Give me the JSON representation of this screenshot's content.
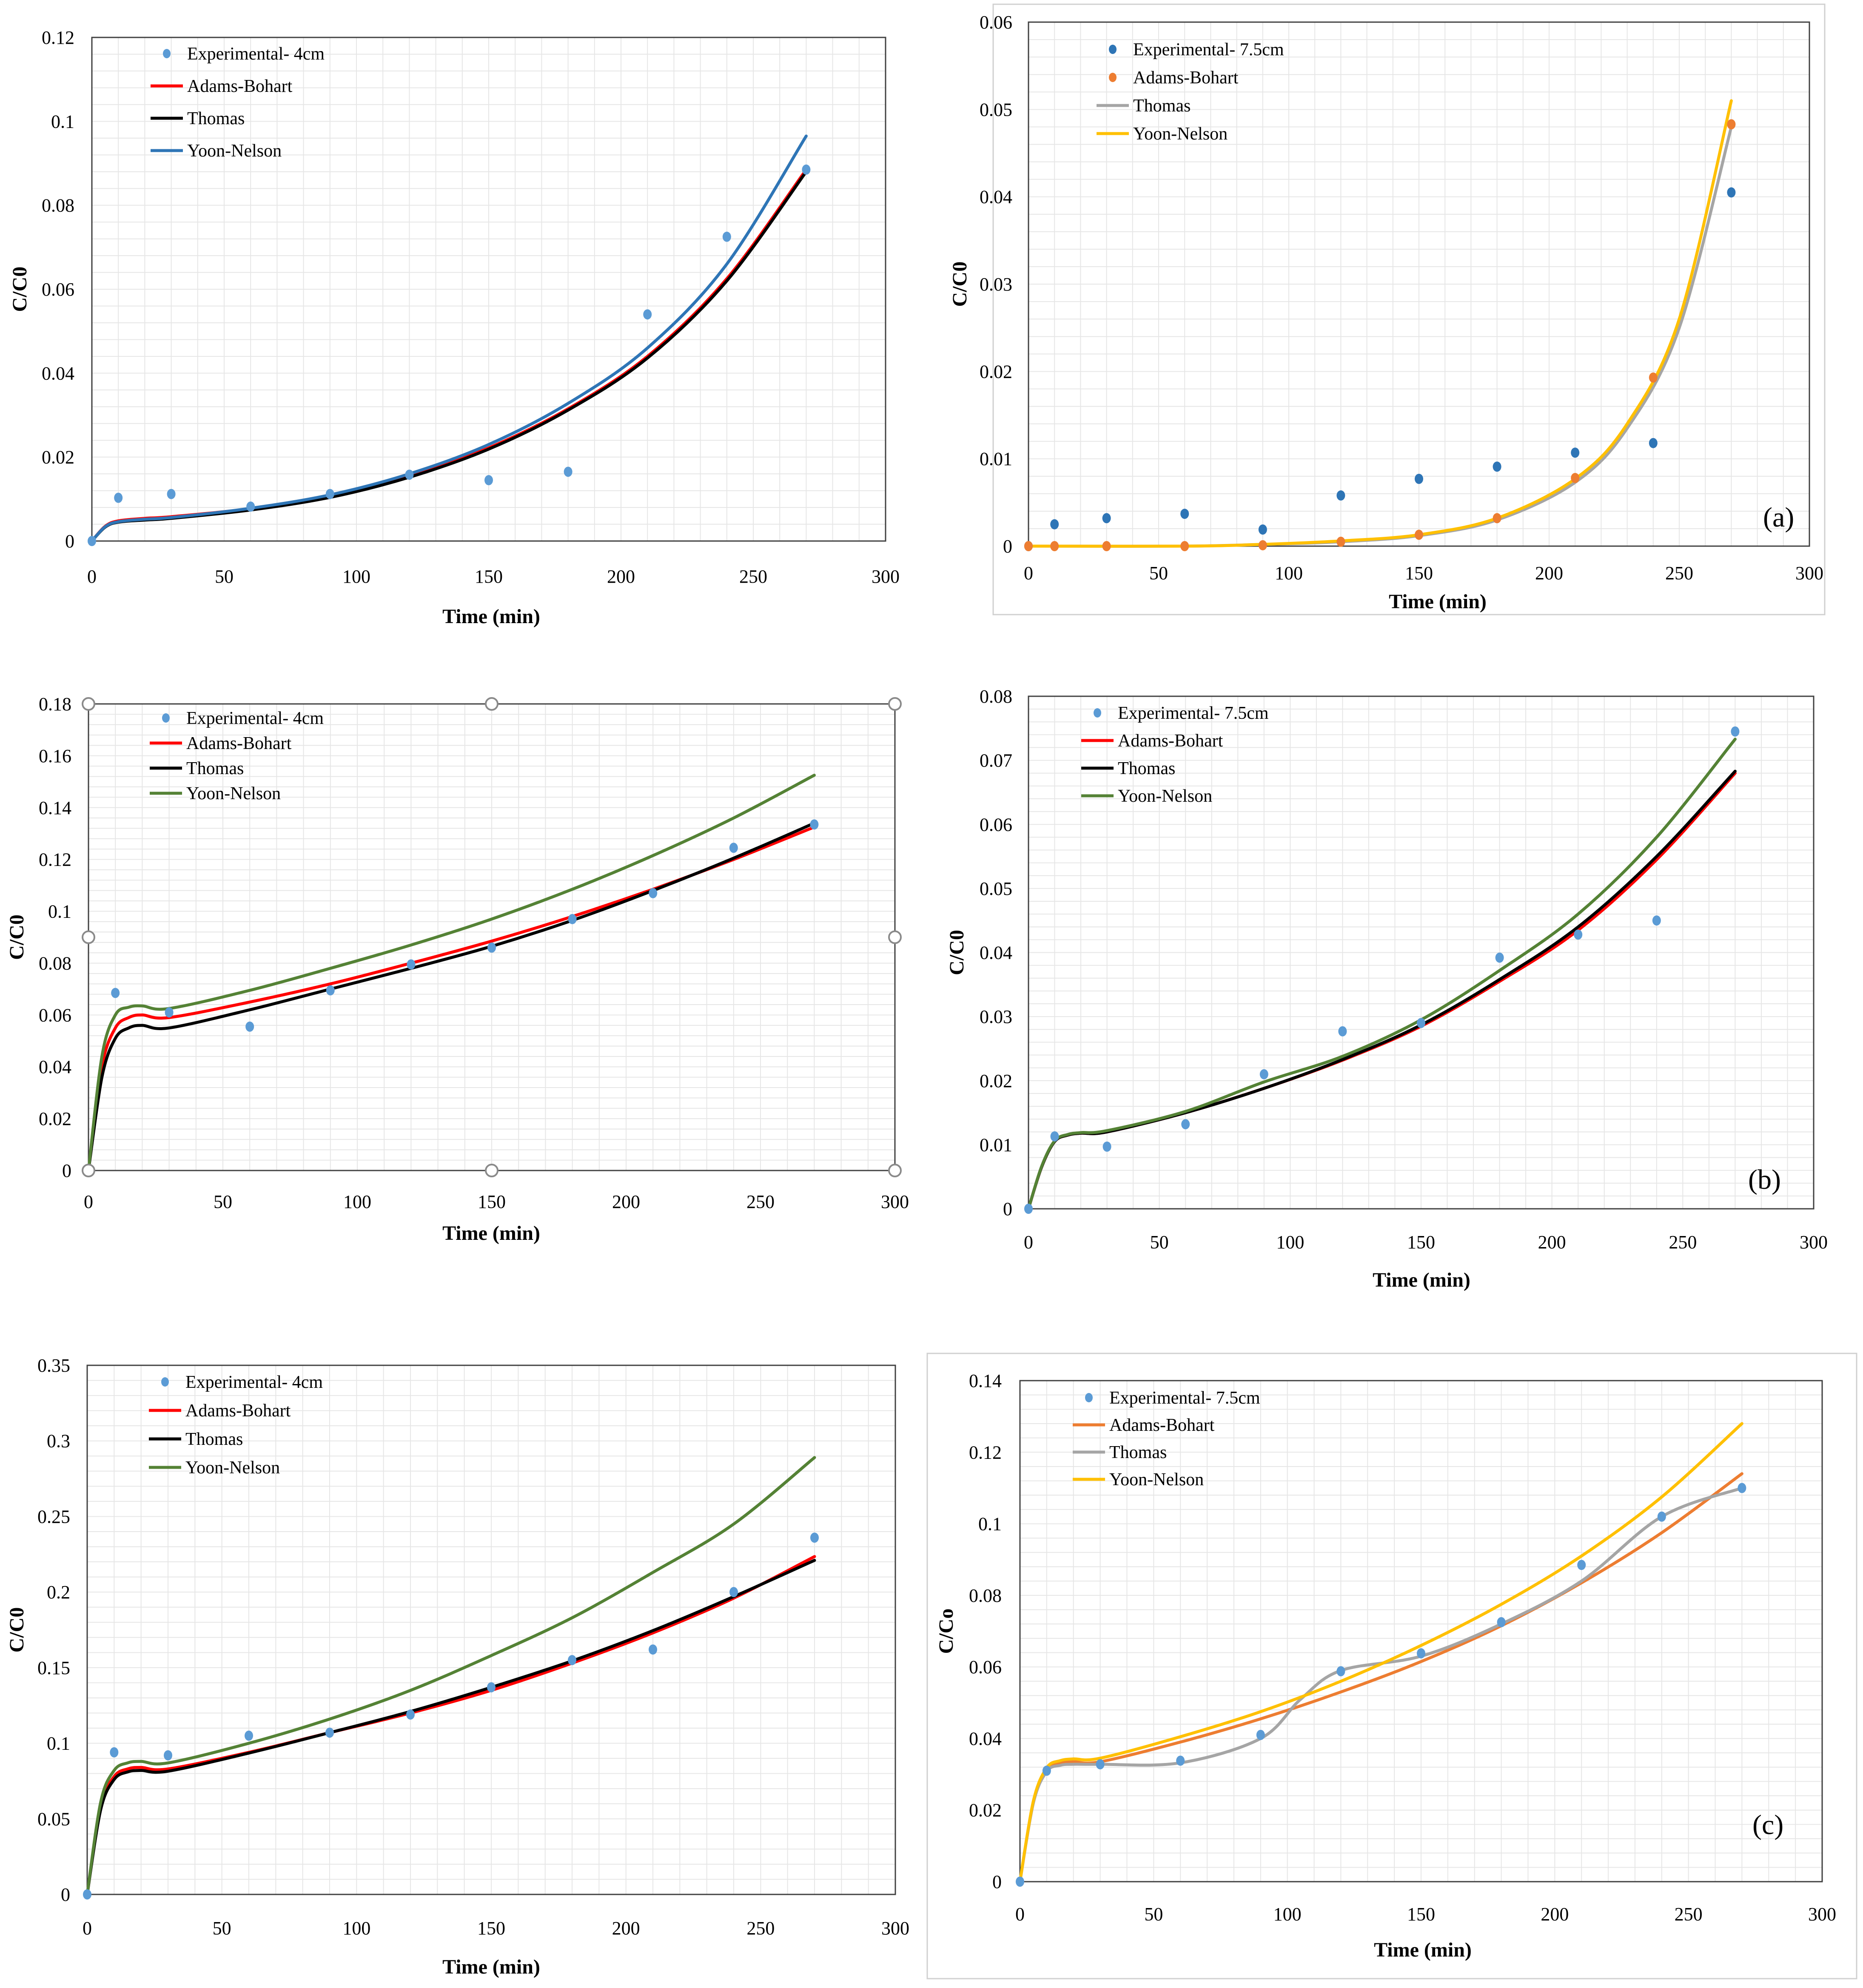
{
  "figure_labels": {
    "a": "(a)",
    "b": "(b)",
    "c": "(c)"
  },
  "chart_data": [
    {
      "id": "a-left",
      "type": "line",
      "xlabel": "Time (min)",
      "ylabel": "C/C0",
      "xlim": [
        0,
        300
      ],
      "ylim": [
        0,
        0.12
      ],
      "xticks": [
        0,
        50,
        100,
        150,
        200,
        250,
        300
      ],
      "xtick_labels": [
        "0",
        "50",
        "100",
        "150",
        "200",
        "250",
        "300"
      ],
      "yticks": [
        0,
        0.02,
        0.04,
        0.06,
        0.08,
        0.1,
        0.12
      ],
      "ytick_labels": [
        "0",
        "0.02",
        "0.04",
        "0.06",
        "0.08",
        "0.1",
        "0.12"
      ],
      "legend": "top-left",
      "series": [
        {
          "name": "Experimental- 4cm",
          "kind": "scatter",
          "color": "#5B9BD5",
          "x": [
            0,
            10,
            30,
            60,
            90,
            120,
            150,
            180,
            210,
            240,
            270
          ],
          "y": [
            0,
            0.0103,
            0.0112,
            0.0082,
            0.0112,
            0.0158,
            0.0145,
            0.0165,
            0.054,
            0.0725,
            0.0885
          ]
        },
        {
          "name": "Adams-Bohart",
          "kind": "line",
          "color": "#FF0000",
          "x": [
            0,
            5,
            10,
            20,
            30,
            60,
            90,
            120,
            150,
            180,
            210,
            240,
            270
          ],
          "y": [
            0,
            0.0035,
            0.0048,
            0.0054,
            0.0058,
            0.0077,
            0.0106,
            0.0155,
            0.0222,
            0.0315,
            0.044,
            0.0625,
            0.0885
          ]
        },
        {
          "name": "Thomas",
          "kind": "line",
          "color": "#000000",
          "x": [
            0,
            5,
            10,
            20,
            30,
            60,
            90,
            120,
            150,
            180,
            210,
            240,
            270
          ],
          "y": [
            0,
            0.0033,
            0.0045,
            0.005,
            0.0054,
            0.0074,
            0.0104,
            0.0152,
            0.0219,
            0.0312,
            0.0436,
            0.062,
            0.088
          ]
        },
        {
          "name": "Yoon-Nelson",
          "kind": "line",
          "color": "#2E75B6",
          "x": [
            0,
            5,
            10,
            20,
            30,
            60,
            90,
            120,
            150,
            180,
            210,
            240,
            270
          ],
          "y": [
            0,
            0.0034,
            0.0046,
            0.0052,
            0.0056,
            0.0078,
            0.011,
            0.016,
            0.023,
            0.0328,
            0.046,
            0.066,
            0.0965
          ]
        }
      ]
    },
    {
      "id": "a-right",
      "type": "line",
      "xlabel": "Time (min)",
      "ylabel": "C/C0",
      "xlim": [
        0,
        300
      ],
      "ylim": [
        0,
        0.06
      ],
      "xticks": [
        0,
        50,
        100,
        150,
        200,
        250,
        300
      ],
      "xtick_labels": [
        "0",
        "50",
        "100",
        "150",
        "200",
        "250",
        "300"
      ],
      "yticks": [
        0,
        0.01,
        0.02,
        0.03,
        0.04,
        0.05,
        0.06
      ],
      "ytick_labels": [
        "0",
        "0.01",
        "0.02",
        "0.03",
        "0.04",
        "0.05",
        "0.06"
      ],
      "legend": "top-left",
      "panel_label": "(a)",
      "series": [
        {
          "name": "Experimental- 7.5cm",
          "kind": "scatter",
          "color": "#2E75B6",
          "x": [
            0,
            10,
            30,
            60,
            90,
            120,
            150,
            180,
            210,
            240,
            270
          ],
          "y": [
            0,
            0.0025,
            0.0032,
            0.0037,
            0.0019,
            0.0058,
            0.0077,
            0.0091,
            0.0107,
            0.0118,
            0.0405
          ]
        },
        {
          "name": "Adams-Bohart",
          "kind": "scatter",
          "color": "#ED7D31",
          "x": [
            0,
            10,
            30,
            60,
            90,
            120,
            150,
            180,
            210,
            240,
            270
          ],
          "y": [
            0,
            0,
            0,
            0,
            0.0001,
            0.0005,
            0.0013,
            0.0032,
            0.0078,
            0.0193,
            0.0483
          ]
        },
        {
          "name": "Thomas",
          "kind": "line",
          "color": "#A5A5A5",
          "x": [
            0,
            60,
            90,
            120,
            150,
            180,
            210,
            230,
            250,
            270
          ],
          "y": [
            0,
            0,
            0.0002,
            0.0005,
            0.0012,
            0.003,
            0.0073,
            0.0135,
            0.025,
            0.048
          ]
        },
        {
          "name": "Yoon-Nelson",
          "kind": "line",
          "color": "#FFC000",
          "x": [
            0,
            60,
            90,
            120,
            150,
            180,
            210,
            230,
            250,
            270
          ],
          "y": [
            0,
            0,
            0.0002,
            0.0006,
            0.0013,
            0.0032,
            0.0077,
            0.014,
            0.026,
            0.051
          ]
        }
      ]
    },
    {
      "id": "b-left",
      "type": "line",
      "xlabel": "Time (min)",
      "ylabel": "C/C0",
      "xlim": [
        0,
        300
      ],
      "ylim": [
        0,
        0.18
      ],
      "xticks": [
        0,
        50,
        100,
        150,
        200,
        250,
        300
      ],
      "xtick_labels": [
        "0",
        "50",
        "100",
        "150",
        "200",
        "250",
        "300"
      ],
      "yticks": [
        0,
        0.02,
        0.04,
        0.06,
        0.08,
        0.1,
        0.12,
        0.14,
        0.16,
        0.18
      ],
      "ytick_labels": [
        "0",
        "0.02",
        "0.04",
        "0.06",
        "0.08",
        "0.1",
        "0.12",
        "0.14",
        "0.16",
        "0.18"
      ],
      "legend": "top-left",
      "series": [
        {
          "name": "Experimental- 4cm",
          "kind": "scatter",
          "color": "#5B9BD5",
          "x": [
            0,
            10,
            30,
            60,
            90,
            120,
            150,
            180,
            210,
            240,
            270
          ],
          "y": [
            0,
            0.0685,
            0.061,
            0.0555,
            0.0695,
            0.0795,
            0.086,
            0.097,
            0.107,
            0.1245,
            0.1335
          ]
        },
        {
          "name": "Adams-Bohart",
          "kind": "line",
          "color": "#FF0000",
          "x": [
            0,
            5,
            10,
            15,
            20,
            30,
            60,
            90,
            120,
            150,
            180,
            210,
            240,
            270
          ],
          "y": [
            0,
            0.04,
            0.055,
            0.059,
            0.06,
            0.059,
            0.065,
            0.072,
            0.08,
            0.0885,
            0.098,
            0.1085,
            0.12,
            0.1325
          ]
        },
        {
          "name": "Thomas",
          "kind": "line",
          "color": "#000000",
          "x": [
            0,
            5,
            10,
            15,
            20,
            30,
            60,
            90,
            120,
            150,
            180,
            210,
            240,
            270
          ],
          "y": [
            0,
            0.036,
            0.051,
            0.055,
            0.056,
            0.055,
            0.062,
            0.07,
            0.078,
            0.0865,
            0.0965,
            0.108,
            0.1205,
            0.134
          ]
        },
        {
          "name": "Yoon-Nelson",
          "kind": "line",
          "color": "#548235",
          "x": [
            0,
            5,
            10,
            15,
            20,
            30,
            60,
            90,
            120,
            150,
            180,
            210,
            240,
            270
          ],
          "y": [
            0,
            0.044,
            0.06,
            0.063,
            0.0635,
            0.0625,
            0.0695,
            0.078,
            0.087,
            0.097,
            0.1085,
            0.1215,
            0.136,
            0.1525
          ]
        }
      ]
    },
    {
      "id": "b-right",
      "type": "line",
      "xlabel": "Time (min)",
      "ylabel": "C/C0",
      "xlim": [
        0,
        300
      ],
      "ylim": [
        0,
        0.08
      ],
      "xticks": [
        0,
        50,
        100,
        150,
        200,
        250,
        300
      ],
      "xtick_labels": [
        "0",
        "50",
        "100",
        "150",
        "200",
        "250",
        "300"
      ],
      "yticks": [
        0,
        0.01,
        0.02,
        0.03,
        0.04,
        0.05,
        0.06,
        0.07,
        0.08
      ],
      "ytick_labels": [
        "0",
        "0.01",
        "0.02",
        "0.03",
        "0.04",
        "0.05",
        "0.06",
        "0.07",
        "0.08"
      ],
      "legend": "top-left",
      "panel_label": "(b)",
      "series": [
        {
          "name": "Experimental- 7.5cm",
          "kind": "scatter",
          "color": "#5B9BD5",
          "x": [
            0,
            10,
            30,
            60,
            90,
            120,
            150,
            180,
            210,
            240,
            270
          ],
          "y": [
            0,
            0.0113,
            0.0097,
            0.0132,
            0.021,
            0.0277,
            0.029,
            0.0392,
            0.0428,
            0.045,
            0.0745
          ]
        },
        {
          "name": "Adams-Bohart",
          "kind": "line",
          "color": "#FF0000",
          "x": [
            0,
            5,
            10,
            15,
            20,
            30,
            60,
            90,
            120,
            150,
            180,
            210,
            240,
            270
          ],
          "y": [
            0,
            0.0065,
            0.0105,
            0.0115,
            0.0118,
            0.012,
            0.015,
            0.0188,
            0.0232,
            0.0285,
            0.0355,
            0.0435,
            0.0545,
            0.068
          ]
        },
        {
          "name": "Thomas",
          "kind": "line",
          "color": "#000000",
          "x": [
            0,
            5,
            10,
            15,
            20,
            30,
            60,
            90,
            120,
            150,
            180,
            210,
            240,
            270
          ],
          "y": [
            0,
            0.0065,
            0.0105,
            0.0115,
            0.0118,
            0.012,
            0.015,
            0.0188,
            0.0233,
            0.0287,
            0.0358,
            0.044,
            0.055,
            0.0683
          ]
        },
        {
          "name": "Yoon-Nelson",
          "kind": "line",
          "color": "#548235",
          "x": [
            0,
            5,
            10,
            15,
            20,
            30,
            60,
            90,
            120,
            150,
            180,
            210,
            240,
            270
          ],
          "y": [
            0,
            0.0066,
            0.0106,
            0.0116,
            0.0119,
            0.0122,
            0.0152,
            0.0198,
            0.0238,
            0.0295,
            0.0372,
            0.046,
            0.058,
            0.0733
          ]
        }
      ]
    },
    {
      "id": "c-left",
      "type": "line",
      "xlabel": "Time (min)",
      "ylabel": "C/C0",
      "xlim": [
        0,
        300
      ],
      "ylim": [
        0,
        0.35
      ],
      "xticks": [
        0,
        50,
        100,
        150,
        200,
        250,
        300
      ],
      "xtick_labels": [
        "0",
        "50",
        "100",
        "150",
        "200",
        "250",
        "300"
      ],
      "yticks": [
        0,
        0.05,
        0.1,
        0.15,
        0.2,
        0.25,
        0.3,
        0.35
      ],
      "ytick_labels": [
        "0",
        "0.05",
        "0.1",
        "0.15",
        "0.2",
        "0.25",
        "0.3",
        "0.35"
      ],
      "legend": "top-left",
      "series": [
        {
          "name": "Experimental- 4cm",
          "kind": "scatter",
          "color": "#5B9BD5",
          "x": [
            0,
            10,
            30,
            60,
            90,
            120,
            150,
            180,
            210,
            240,
            270
          ],
          "y": [
            0,
            0.094,
            0.092,
            0.105,
            0.107,
            0.119,
            0.137,
            0.155,
            0.162,
            0.2,
            0.236
          ]
        },
        {
          "name": "Adams-Bohart",
          "kind": "line",
          "color": "#FF0000",
          "x": [
            0,
            5,
            10,
            15,
            20,
            30,
            60,
            90,
            120,
            150,
            180,
            210,
            240,
            270
          ],
          "y": [
            0,
            0.058,
            0.078,
            0.083,
            0.084,
            0.083,
            0.094,
            0.107,
            0.12,
            0.135,
            0.153,
            0.173,
            0.196,
            0.2235
          ]
        },
        {
          "name": "Thomas",
          "kind": "line",
          "color": "#000000",
          "x": [
            0,
            5,
            10,
            15,
            20,
            30,
            60,
            90,
            120,
            150,
            180,
            210,
            240,
            270
          ],
          "y": [
            0,
            0.056,
            0.076,
            0.081,
            0.082,
            0.0815,
            0.0935,
            0.107,
            0.121,
            0.137,
            0.1545,
            0.1745,
            0.197,
            0.221
          ]
        },
        {
          "name": "Yoon-Nelson",
          "kind": "line",
          "color": "#548235",
          "x": [
            0,
            5,
            10,
            15,
            20,
            30,
            60,
            90,
            120,
            150,
            180,
            210,
            240,
            270
          ],
          "y": [
            0,
            0.061,
            0.082,
            0.087,
            0.088,
            0.087,
            0.1,
            0.116,
            0.135,
            0.158,
            0.183,
            0.213,
            0.245,
            0.289
          ]
        }
      ]
    },
    {
      "id": "c-right",
      "type": "line",
      "xlabel": "Time (min)",
      "ylabel": "C/Co",
      "xlim": [
        0,
        300
      ],
      "ylim": [
        0,
        0.14
      ],
      "xticks": [
        0,
        50,
        100,
        150,
        200,
        250,
        300
      ],
      "xtick_labels": [
        "0",
        "50",
        "100",
        "150",
        "200",
        "250",
        "300"
      ],
      "yticks": [
        0,
        0.02,
        0.04,
        0.06,
        0.08,
        0.1,
        0.12,
        0.14
      ],
      "ytick_labels": [
        "0",
        "0.02",
        "0.04",
        "0.06",
        "0.08",
        "0.1",
        "0.12",
        "0.14"
      ],
      "legend": "top-left",
      "panel_label": "(c)",
      "series": [
        {
          "name": "Experimental- 7.5cm",
          "kind": "scatter",
          "color": "#5B9BD5",
          "x": [
            0,
            10,
            30,
            60,
            90,
            120,
            150,
            180,
            210,
            240,
            270
          ],
          "y": [
            0,
            0.031,
            0.0328,
            0.0338,
            0.041,
            0.0588,
            0.0638,
            0.0725,
            0.0885,
            0.102,
            0.11
          ]
        },
        {
          "name": "Adams-Bohart",
          "kind": "line",
          "color": "#ED7D31",
          "x": [
            0,
            5,
            10,
            15,
            20,
            30,
            60,
            90,
            120,
            150,
            180,
            210,
            240,
            270
          ],
          "y": [
            0,
            0.022,
            0.031,
            0.033,
            0.0335,
            0.0335,
            0.039,
            0.0455,
            0.053,
            0.0615,
            0.0715,
            0.0835,
            0.0975,
            0.114
          ]
        },
        {
          "name": "Thomas",
          "kind": "line",
          "color": "#A5A5A5",
          "x": [
            0,
            5,
            10,
            15,
            20,
            30,
            60,
            90,
            105,
            120,
            150,
            180,
            210,
            240,
            270
          ],
          "y": [
            0,
            0.022,
            0.0308,
            0.0325,
            0.0328,
            0.0328,
            0.0332,
            0.04,
            0.051,
            0.059,
            0.063,
            0.072,
            0.084,
            0.102,
            0.11
          ]
        },
        {
          "name": "Yoon-Nelson",
          "kind": "line",
          "color": "#FFC000",
          "x": [
            0,
            5,
            10,
            15,
            20,
            30,
            60,
            90,
            120,
            150,
            180,
            210,
            240,
            270
          ],
          "y": [
            0,
            0.0225,
            0.0318,
            0.0338,
            0.0343,
            0.0345,
            0.0405,
            0.0475,
            0.056,
            0.066,
            0.0775,
            0.091,
            0.1075,
            0.128
          ]
        }
      ]
    }
  ]
}
